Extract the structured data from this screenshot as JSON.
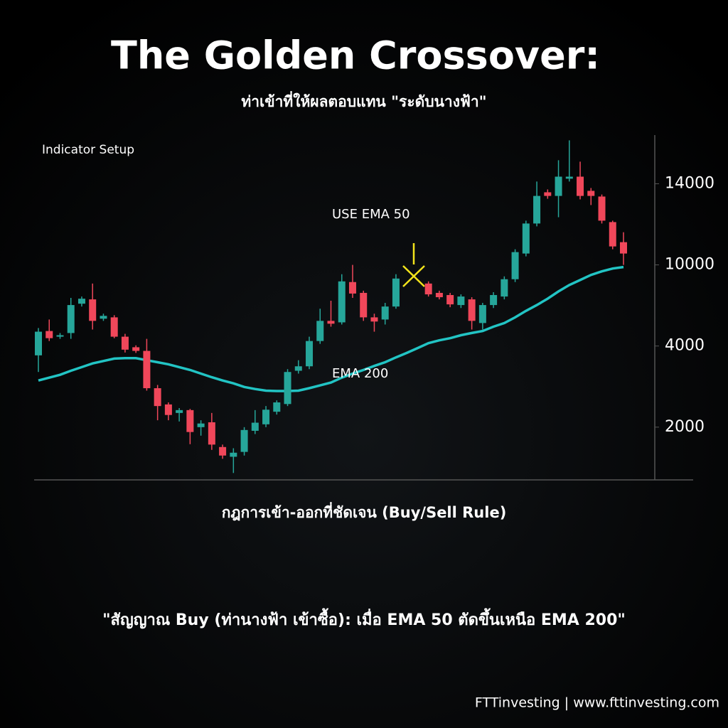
{
  "chart_data": {
    "type": "candlestick",
    "title": "The Golden Crossover:",
    "subtitle": "ท่าเข้าที่ให้ผลตอบแทน \"ระดับนางฟ้า\"",
    "panel_label": "Indicator Setup",
    "annotation": "USE EMA 50",
    "up_color": "#26a69a",
    "down_color": "#f0475a",
    "open": [
      3770,
      5110,
      4690,
      4960,
      7130,
      7450,
      6020,
      6120,
      4690,
      3970,
      3880,
      2960,
      2560,
      2350,
      2420,
      2000,
      2120,
      1510,
      1270,
      1390,
      1910,
      2070,
      2380,
      2570,
      3390,
      3500,
      4370,
      5860,
      5750,
      8730,
      7930,
      6120,
      5960,
      6920,
      null,
      null,
      8620,
      7930,
      7770,
      7030,
      7450,
      5700,
      7030,
      7660,
      8940,
      10560,
      12040,
      13580,
      13400,
      14250,
      14350,
      13650,
      13370,
      12110,
      11120
    ],
    "high": [
      5330,
      5960,
      4960,
      7560,
      7660,
      8620,
      6390,
      6280,
      4900,
      4050,
      4530,
      3040,
      2610,
      2470,
      2450,
      2170,
      2350,
      1570,
      1480,
      2000,
      2420,
      2520,
      2660,
      3430,
      3650,
      4690,
      6760,
      7350,
      9310,
      10000,
      8090,
      6390,
      7190,
      9310,
      null,
      null,
      8780,
      8090,
      7930,
      7820,
      7610,
      7190,
      7980,
      9150,
      10770,
      12180,
      14110,
      13720,
      15160,
      16140,
      15090,
      13790,
      13470,
      12180,
      11610
    ],
    "low": [
      3360,
      4370,
      4530,
      4530,
      6920,
      5220,
      5860,
      4580,
      3840,
      3830,
      2900,
      2170,
      2170,
      2140,
      1580,
      1790,
      1440,
      1220,
      870,
      1300,
      1830,
      2000,
      2310,
      2520,
      3320,
      3430,
      4160,
      5430,
      5590,
      7560,
      5860,
      5060,
      5590,
      6760,
      null,
      null,
      7660,
      7450,
      6870,
      6810,
      5220,
      5220,
      6810,
      7450,
      8730,
      10420,
      11900,
      13260,
      12350,
      14110,
      13230,
      12950,
      12040,
      10770,
      10000
    ],
    "close": [
      5060,
      4580,
      4800,
      7030,
      7500,
      5860,
      6230,
      4690,
      3910,
      3880,
      2960,
      2520,
      2300,
      2420,
      1880,
      2090,
      1570,
      1300,
      1370,
      1930,
      2110,
      2430,
      2610,
      3360,
      3500,
      4370,
      5860,
      5650,
      8780,
      7880,
      6120,
      5810,
      6920,
      8990,
      null,
      null,
      7820,
      7610,
      7080,
      7660,
      5860,
      7030,
      7770,
      8940,
      10630,
      12040,
      13400,
      13400,
      14350,
      14350,
      13400,
      13400,
      12180,
      10910,
      10560
    ],
    "series": [
      {
        "name": "EMA 200",
        "color": "#22c4c4",
        "values": [
          3150,
          3220,
          3290,
          3390,
          3480,
          3570,
          3630,
          3690,
          3700,
          3700,
          3650,
          3600,
          3550,
          3480,
          3410,
          3320,
          3230,
          3150,
          3080,
          2990,
          2940,
          2900,
          2890,
          2890,
          2900,
          2960,
          3030,
          3100,
          3220,
          3320,
          3410,
          3510,
          3600,
          3720,
          3830,
          3950,
          4210,
          4420,
          4580,
          4800,
          4960,
          5110,
          5430,
          5700,
          6120,
          6600,
          7030,
          7500,
          8040,
          8510,
          8880,
          9260,
          9520,
          9730,
          9840
        ]
      }
    ],
    "ylim": [
      700,
      16400
    ],
    "yticks": [
      2000,
      4000,
      10000,
      14000
    ]
  },
  "rule_heading": "กฎการเข้า-ออกที่ชัดเจน (Buy/Sell Rule)",
  "signal_quote": "\"สัญญาณ Buy (ท่านางฟ้า เข้าซื้อ): เมื่อ EMA 50 ตัดขึ้นเหนือ EMA 200\"",
  "footer": "FTTinvesting | www.fttinvesting.com"
}
